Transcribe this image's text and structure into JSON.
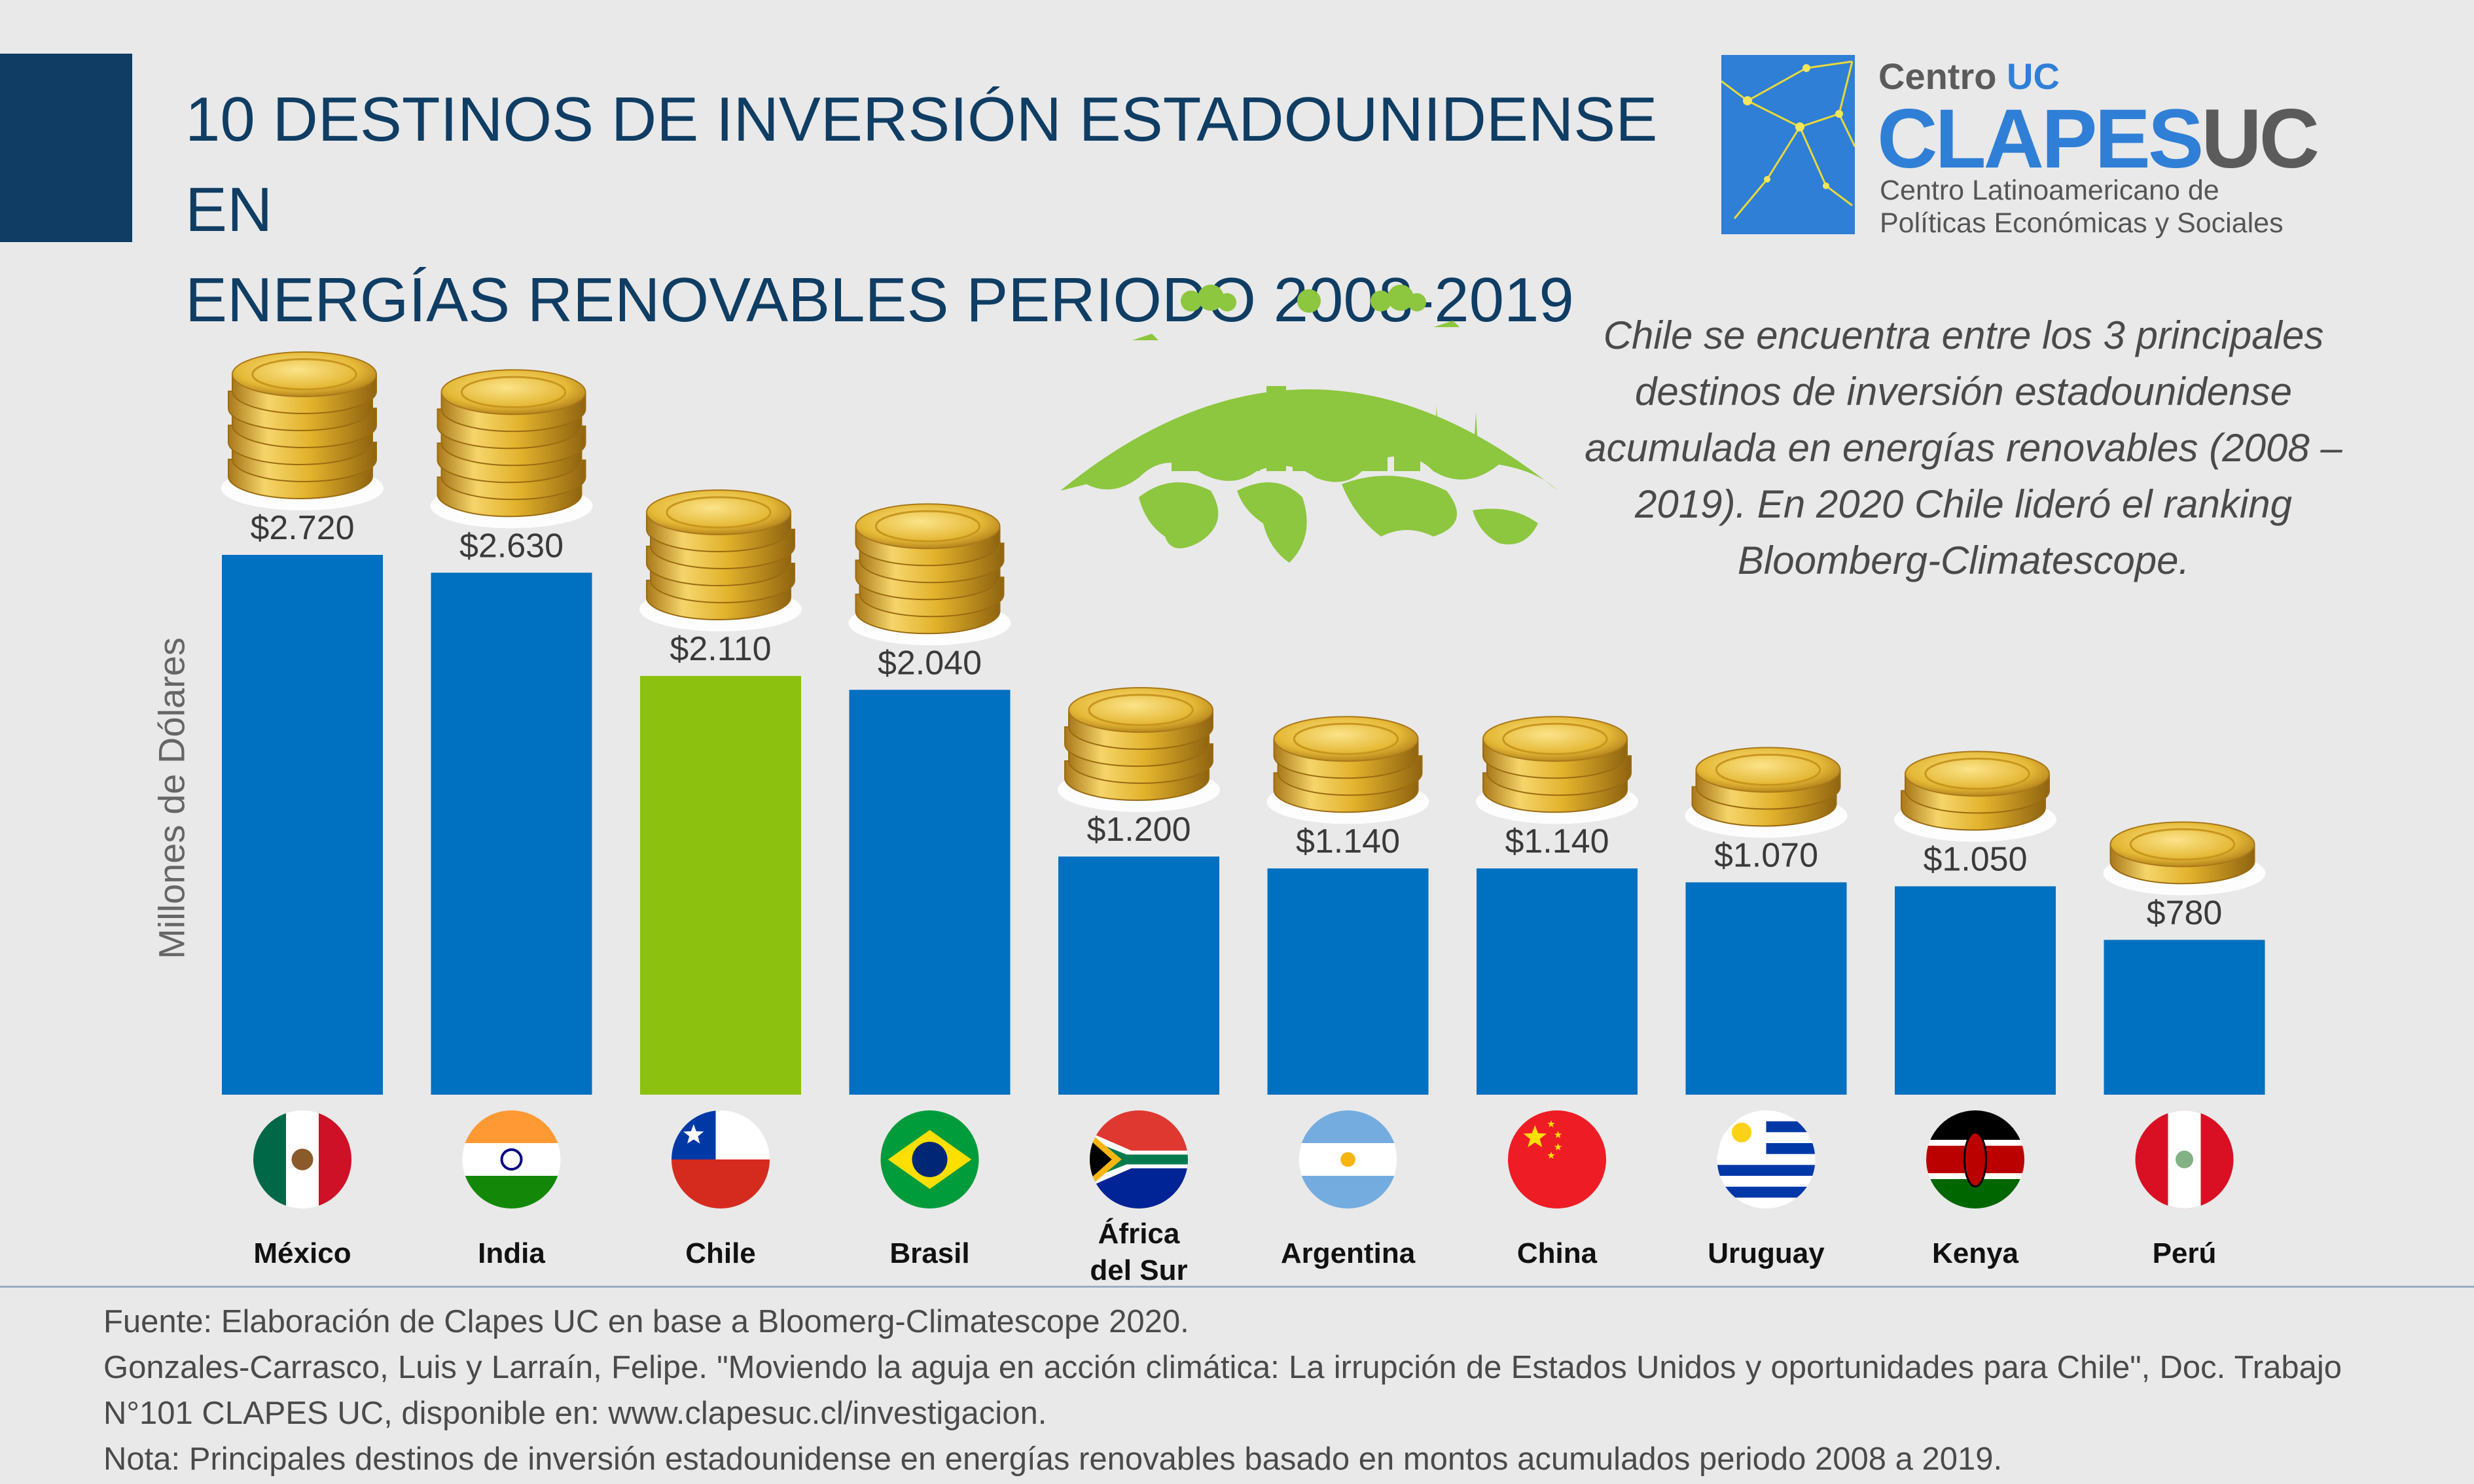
{
  "title": "10 DESTINOS DE INVERSIÓN ESTADOUNIDENSE EN\nENERGÍAS RENOVABLES PERIODO 2008-2019",
  "logo": {
    "centro": "Centro",
    "centro_uc": "UC",
    "main_a": "CLAPES",
    "main_b": "UC",
    "subtitle": "Centro Latinoamericano de\nPolíticas Económicas y Sociales"
  },
  "callout": "Chile se encuentra entre los 3 principales destinos de inversión estadounidense acumulada en energías renovables (2008 – 2019). En 2020 Chile lideró el ranking Bloomberg-Climatescope.",
  "colors": {
    "bar": "#0070c0",
    "highlight": "#8cc110",
    "title": "#0f3d63",
    "coin": "#e0b52a"
  },
  "icons": [
    "coin-stack-icon",
    "green-globe-icon",
    "flag-icon"
  ],
  "chart_data": {
    "type": "bar",
    "title": "10 DESTINOS DE INVERSIÓN ESTADOUNIDENSE EN ENERGÍAS RENOVABLES PERIODO 2008-2019",
    "ylabel": "Millones de Dólares",
    "xlabel": "",
    "ylim": [
      0,
      2720
    ],
    "highlight": "Chile",
    "categories": [
      "México",
      "India",
      "Chile",
      "Brasil",
      "África del Sur",
      "Argentina",
      "China",
      "Uruguay",
      "Kenya",
      "Perú"
    ],
    "values": [
      2720,
      2630,
      2110,
      2040,
      1200,
      1140,
      1140,
      1070,
      1050,
      780
    ],
    "value_labels": [
      "$2.720",
      "$2.630",
      "$2.110",
      "$2.040",
      "$1.200",
      "$1.140",
      "$1.140",
      "$1.070",
      "$1.050",
      "$780"
    ],
    "coin_counts": [
      6,
      6,
      5,
      5,
      4,
      3,
      3,
      2,
      2,
      1
    ]
  },
  "footer": {
    "line1": "Fuente: Elaboración de Clapes UC en base a Bloomerg-Climatescope 2020.",
    "line2": "Gonzales-Carrasco, Luis y Larraín, Felipe. \"Moviendo la aguja en acción climática: La irrupción de Estados Unidos y oportunidades para Chile\", Doc. Trabajo N°101 CLAPES UC, disponible en: www.clapesuc.cl/investigacion.",
    "line3": "Nota: Principales destinos de inversión estadounidense en energías renovables basado en montos acumulados periodo 2008 a 2019."
  }
}
